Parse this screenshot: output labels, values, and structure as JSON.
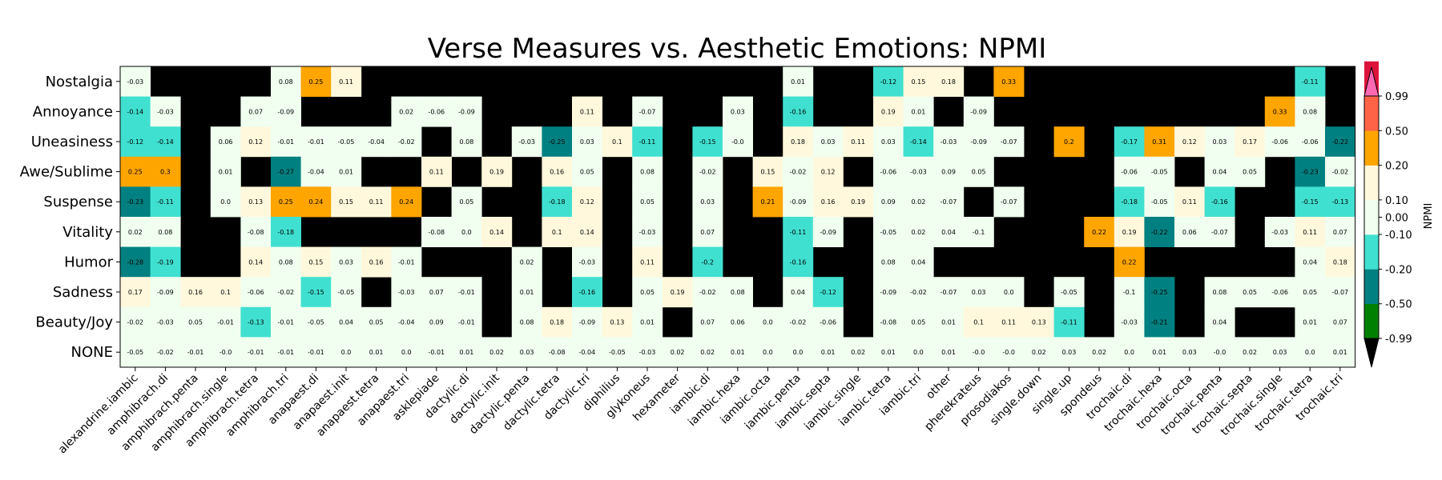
{
  "chart_data": {
    "type": "heatmap",
    "title": "Verse Measures vs. Aesthetic Emotions: NPMI",
    "xlabel": "",
    "ylabel": "",
    "colorbar_label": "NPMI",
    "missing_color": "#000000",
    "x_categories": [
      "alexandrine.iambic",
      "amphibrach.di",
      "amphibrach.penta",
      "amphibrach.single",
      "amphibrach.tetra",
      "amphibrach.tri",
      "anapaest.di",
      "anapaest.init",
      "anapaest.tetra",
      "anapaest.tri",
      "asklepiade",
      "dactylic.di",
      "dactylic.init",
      "dactylic.penta",
      "dactylic.tetra",
      "dactylic.tri",
      "diphilius",
      "glykoneus",
      "hexameter",
      "iambic.di",
      "iambic.hexa",
      "iambic.octa",
      "iambic.penta",
      "iambic.septa",
      "iambic.single",
      "iambic.tetra",
      "iambic.tri",
      "other",
      "pherekrateus",
      "prosodiakos",
      "single.down",
      "single.up",
      "spondeus",
      "trochaic.di",
      "trochaic.hexa",
      "trochaic.octa",
      "trochaic.penta",
      "trochaic.septa",
      "trochaic.single",
      "trochaic.tetra",
      "trochaic.tri"
    ],
    "y_categories": [
      "Nostalgia",
      "Annoyance",
      "Uneasiness",
      "Awe/Sublime",
      "Suspense",
      "Vitality",
      "Humor",
      "Sadness",
      "Beauty/Joy",
      "NONE"
    ],
    "values": [
      [
        "-0.03",
        null,
        null,
        null,
        null,
        "0.08",
        "0.25",
        "0.11",
        null,
        null,
        null,
        null,
        null,
        null,
        null,
        null,
        null,
        null,
        null,
        null,
        null,
        null,
        "0.01",
        null,
        null,
        "-0.12",
        "0.15",
        "0.18",
        null,
        "0.33",
        null,
        null,
        null,
        null,
        null,
        null,
        null,
        null,
        null,
        "-0.11",
        null
      ],
      [
        "-0.14",
        "-0.03",
        null,
        null,
        "0.07",
        "-0.09",
        null,
        null,
        null,
        "0.02",
        "-0.06",
        "-0.09",
        null,
        null,
        null,
        "0.11",
        null,
        "-0.07",
        null,
        null,
        "0.03",
        null,
        "-0.16",
        null,
        null,
        "0.19",
        "0.01",
        null,
        "-0.09",
        null,
        null,
        null,
        null,
        null,
        null,
        null,
        null,
        null,
        "0.33",
        "0.08",
        null
      ],
      [
        "-0.12",
        "-0.14",
        null,
        "0.06",
        "0.12",
        "-0.01",
        "-0.01",
        "-0.05",
        "-0.04",
        "-0.02",
        null,
        "0.08",
        null,
        "-0.03",
        "-0.25",
        "0.03",
        "0.1",
        "-0.11",
        null,
        "-0.15",
        "-0.0",
        null,
        "0.18",
        "0.03",
        "0.11",
        "0.03",
        "-0.14",
        "-0.03",
        "-0.09",
        "-0.07",
        null,
        "0.2",
        null,
        "-0.17",
        "0.31",
        "0.12",
        "0.03",
        "0.17",
        "-0.06",
        "-0.06",
        "-0.22"
      ],
      [
        "0.25",
        "0.3",
        null,
        "0.01",
        null,
        "-0.27",
        "-0.04",
        "0.01",
        null,
        null,
        "0.11",
        null,
        "0.19",
        null,
        "0.16",
        "0.05",
        null,
        "0.08",
        null,
        "-0.02",
        null,
        "0.15",
        "-0.02",
        "0.12",
        null,
        "-0.06",
        "-0.03",
        "0.09",
        "0.05",
        null,
        null,
        null,
        null,
        "-0.06",
        "-0.05",
        null,
        "0.04",
        "0.05",
        null,
        "-0.23",
        "-0.02"
      ],
      [
        "-0.23",
        "-0.11",
        null,
        "0.0",
        "0.13",
        "0.25",
        "0.24",
        "0.15",
        "0.11",
        "0.24",
        null,
        "0.05",
        null,
        null,
        "-0.18",
        "0.12",
        null,
        "0.05",
        null,
        "0.03",
        null,
        "0.21",
        "-0.09",
        "0.16",
        "0.19",
        "0.09",
        "0.02",
        "-0.07",
        null,
        "-0.07",
        null,
        null,
        null,
        "-0.18",
        "-0.05",
        "0.11",
        "-0.16",
        null,
        null,
        "-0.15",
        "-0.13"
      ],
      [
        "0.02",
        "0.08",
        null,
        null,
        "-0.08",
        "-0.18",
        null,
        null,
        null,
        null,
        "-0.08",
        "0.0",
        "0.14",
        null,
        "0.1",
        "0.14",
        null,
        "-0.03",
        null,
        "0.07",
        null,
        null,
        "-0.11",
        "-0.09",
        null,
        "-0.05",
        "0.02",
        "0.04",
        "-0.1",
        null,
        null,
        null,
        "0.22",
        "0.19",
        "-0.22",
        "0.06",
        "-0.07",
        null,
        "-0.03",
        "0.11",
        "0.07"
      ],
      [
        "-0.28",
        "-0.19",
        null,
        null,
        "0.14",
        "0.08",
        "0.15",
        "0.03",
        "0.16",
        "-0.01",
        null,
        null,
        null,
        "0.02",
        null,
        "-0.03",
        null,
        "0.11",
        null,
        "-0.2",
        null,
        null,
        "-0.16",
        null,
        null,
        "0.08",
        "0.04",
        null,
        null,
        null,
        null,
        null,
        null,
        "0.22",
        null,
        null,
        null,
        null,
        null,
        "0.04",
        "0.18"
      ],
      [
        "0.17",
        "-0.09",
        "0.16",
        "0.1",
        "-0.06",
        "-0.02",
        "-0.15",
        "-0.05",
        null,
        "-0.03",
        "0.07",
        "-0.01",
        null,
        "0.01",
        null,
        "-0.16",
        null,
        "0.05",
        "0.19",
        "-0.02",
        "0.08",
        null,
        "0.04",
        "-0.12",
        null,
        "-0.09",
        "-0.02",
        "-0.07",
        "0.03",
        "0.0",
        null,
        "-0.05",
        null,
        "-0.1",
        "-0.25",
        null,
        "0.08",
        "0.05",
        "-0.06",
        "0.05",
        "-0.07"
      ],
      [
        "-0.02",
        "-0.03",
        "0.05",
        "-0.01",
        "-0.13",
        "-0.01",
        "-0.05",
        "0.04",
        "0.05",
        "-0.04",
        "0.09",
        "-0.01",
        null,
        "0.08",
        "0.18",
        "-0.09",
        "0.13",
        "0.01",
        null,
        "0.07",
        "0.06",
        "0.0",
        "-0.02",
        "-0.06",
        null,
        "-0.08",
        "0.05",
        "0.01",
        "0.1",
        "0.11",
        "0.13",
        "-0.11",
        null,
        "-0.03",
        "-0.21",
        null,
        "0.04",
        null,
        null,
        "0.01",
        "0.07"
      ],
      [
        "-0.05",
        "-0.02",
        "-0.01",
        "-0.0",
        "-0.01",
        "-0.01",
        "-0.01",
        "0.0",
        "0.01",
        "0.0",
        "-0.01",
        "0.01",
        "0.02",
        "0.03",
        "-0.08",
        "-0.04",
        "-0.05",
        "-0.03",
        "0.02",
        "0.02",
        "0.01",
        "0.0",
        "0.0",
        "0.01",
        "0.02",
        "0.01",
        "0.0",
        "0.01",
        "-0.0",
        "-0.0",
        "0.02",
        "0.03",
        "0.02",
        "0.0",
        "0.01",
        "0.03",
        "-0.0",
        "0.02",
        "0.03",
        "0.0",
        "0.01"
      ]
    ],
    "colorbar": {
      "boundaries": [
        -0.99,
        -0.5,
        -0.2,
        -0.1,
        0.1,
        0.2,
        0.5,
        0.99
      ],
      "colors": [
        "#008000",
        "#008080",
        "#40E0D0",
        "#F0FFF0",
        "#FFF8DC",
        "#FFA500",
        "#FF6347",
        "#DC143C"
      ],
      "under_color": "#000000",
      "over_color": "#FF69B4",
      "tick_labels": [
        "-0.99",
        "-0.50",
        "-0.20",
        "-0.10",
        "0.00",
        "0.10",
        "0.20",
        "0.50",
        "0.99"
      ],
      "tick_values": [
        -0.99,
        -0.5,
        -0.2,
        -0.1,
        0.0,
        0.1,
        0.2,
        0.5,
        0.99
      ]
    }
  }
}
